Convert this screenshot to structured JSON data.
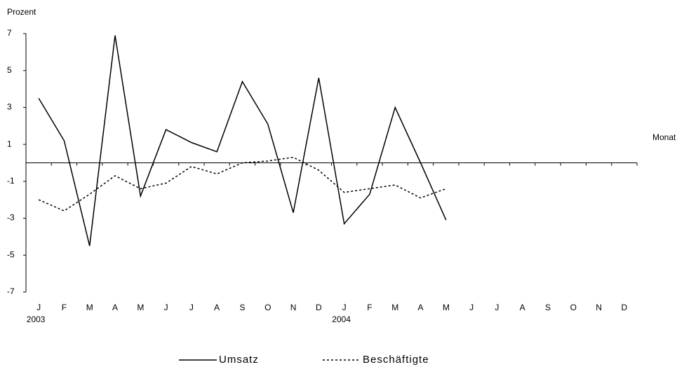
{
  "chart_data": {
    "type": "line",
    "y_label": "Prozent",
    "x_label": "Monat",
    "categories": [
      "J",
      "F",
      "M",
      "A",
      "M",
      "J",
      "J",
      "A",
      "S",
      "O",
      "N",
      "D",
      "J",
      "F",
      "M",
      "A",
      "M",
      "J",
      "J",
      "A",
      "S",
      "O",
      "N",
      "D"
    ],
    "year_labels": [
      "2003",
      null,
      null,
      null,
      null,
      null,
      null,
      null,
      null,
      null,
      null,
      null,
      "2004",
      null,
      null,
      null,
      null,
      null,
      null,
      null,
      null,
      null,
      null,
      null
    ],
    "series": [
      {
        "name": "Umsatz",
        "color": "#000000",
        "dash": "solid",
        "values": [
          3.5,
          1.2,
          -4.5,
          6.9,
          -1.8,
          1.8,
          1.1,
          0.6,
          4.4,
          2.1,
          -2.7,
          4.6,
          -3.3,
          -1.7,
          3.0,
          0.0,
          -3.1,
          null,
          null,
          null,
          null,
          null,
          null,
          null
        ]
      },
      {
        "name": "Beschäftigte",
        "color": "#000000",
        "dash": "dotted",
        "values": [
          -2.0,
          -2.6,
          -1.7,
          -0.7,
          -1.4,
          -1.1,
          -0.2,
          -0.6,
          0.0,
          0.1,
          0.3,
          -0.4,
          -1.6,
          -1.4,
          -1.2,
          -1.9,
          -1.4,
          null,
          null,
          null,
          null,
          null,
          null,
          null
        ]
      }
    ],
    "ylim": [
      -7,
      7
    ],
    "yticks": [
      -7,
      -5,
      -3,
      -1,
      1,
      3,
      5,
      7
    ],
    "grid": false,
    "legend": "bottom"
  }
}
